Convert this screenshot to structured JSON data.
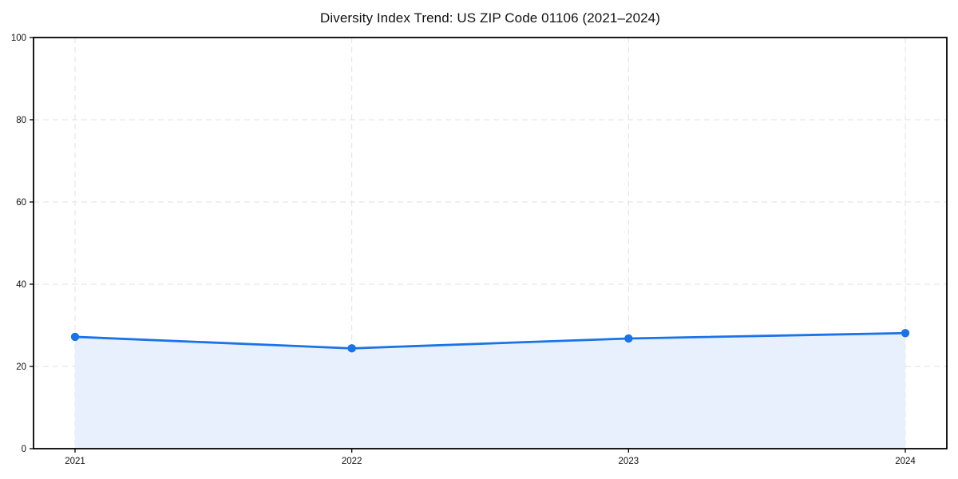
{
  "chart_data": {
    "type": "area",
    "title": "Diversity Index Trend: US ZIP Code 01106 (2021–2024)",
    "x": [
      2021,
      2022,
      2023,
      2024
    ],
    "x_tick_labels": [
      "2021",
      "2022",
      "2023",
      "2024"
    ],
    "y_ticks": [
      0,
      20,
      40,
      60,
      80,
      100
    ],
    "values": [
      27.2,
      24.4,
      26.8,
      28.1
    ],
    "xlim": [
      2020.85,
      2024.15
    ],
    "ylim": [
      0,
      100
    ],
    "xlabel": "",
    "ylabel": "",
    "legend": "none",
    "grid": "dashed-both-axes",
    "colors": {
      "line": "#1a73e8",
      "marker": "#1a73e8",
      "fill": "#e8f0fd",
      "grid": "#e2e2e2",
      "spine": "#000000",
      "tick_text": "#111111",
      "background": "#ffffff"
    }
  }
}
